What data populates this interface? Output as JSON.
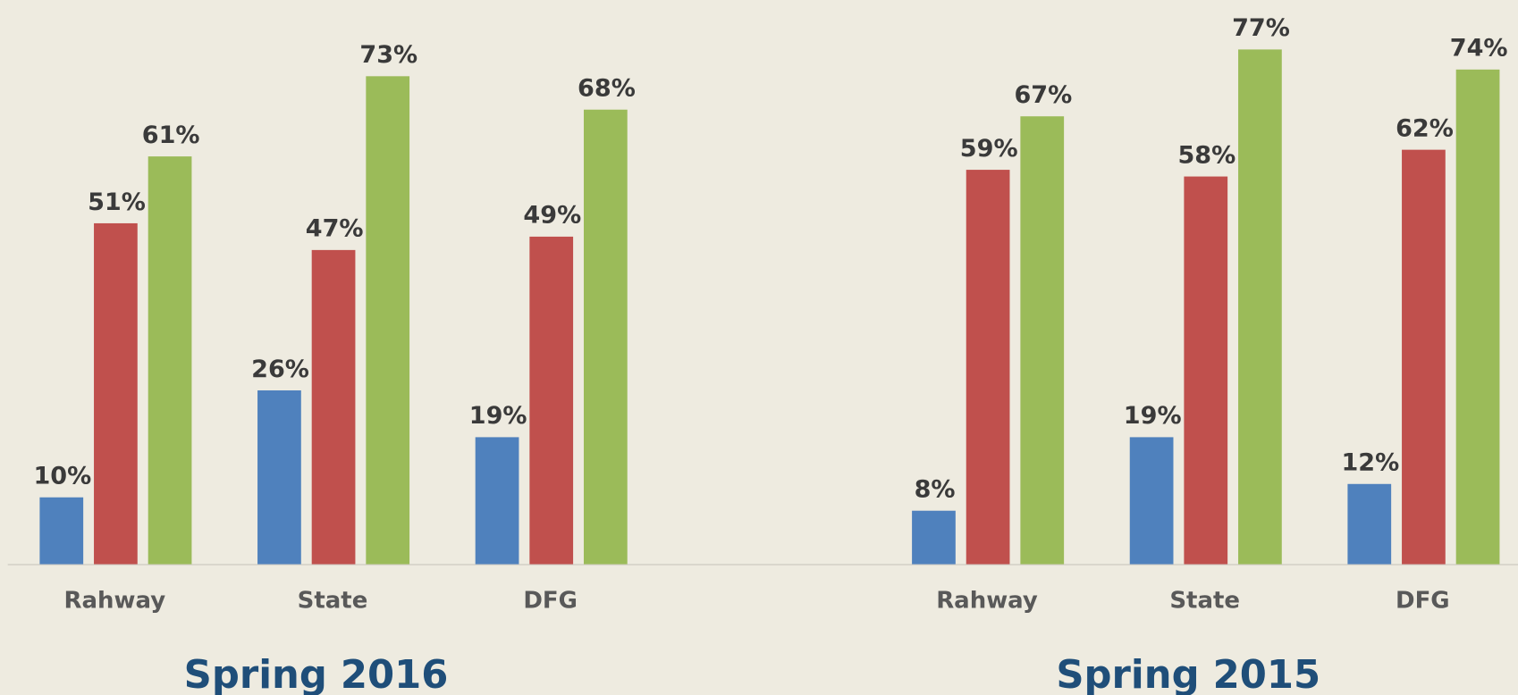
{
  "chart_data": [
    {
      "type": "bar",
      "xlabel": "Spring 2016",
      "categories": [
        "Rahway",
        "State",
        "DFG"
      ],
      "series": [
        {
          "color": "#4f81bd",
          "values": [
            10,
            26,
            19
          ],
          "value_labels": [
            "10%",
            "26%",
            "19%"
          ]
        },
        {
          "color": "#c0504d",
          "values": [
            51,
            47,
            49
          ],
          "value_labels": [
            "51%",
            "47%",
            "49%"
          ]
        },
        {
          "color": "#9bbb59",
          "values": [
            61,
            73,
            68
          ],
          "value_labels": [
            "61%",
            "73%",
            "68%"
          ]
        }
      ]
    },
    {
      "type": "bar",
      "xlabel": "Spring 2015",
      "categories": [
        "Rahway",
        "State",
        "DFG"
      ],
      "series": [
        {
          "color": "#4f81bd",
          "values": [
            8,
            19,
            12
          ],
          "value_labels": [
            "8%",
            "19%",
            "12%"
          ]
        },
        {
          "color": "#c0504d",
          "values": [
            59,
            58,
            62
          ],
          "value_labels": [
            "59%",
            "58%",
            "62%"
          ]
        },
        {
          "color": "#9bbb59",
          "values": [
            67,
            77,
            74
          ],
          "value_labels": [
            "67%",
            "77%",
            "74%"
          ]
        }
      ]
    }
  ]
}
